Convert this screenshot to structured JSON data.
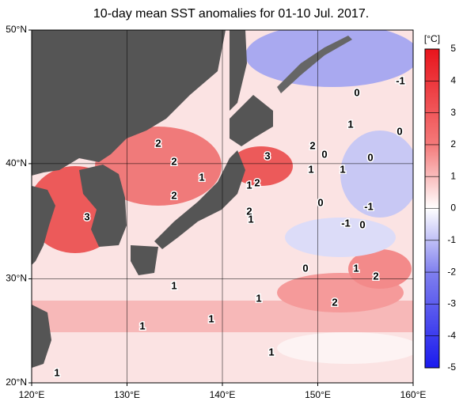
{
  "map": {
    "title": "10-day mean SST anomalies for 01-10 Jul. 2017.",
    "lonlim": [
      120,
      160
    ],
    "latlim": [
      20,
      50
    ],
    "lonticks": [
      {
        "value": 120,
        "label": "120°E"
      },
      {
        "value": 130,
        "label": "130°E"
      },
      {
        "value": 140,
        "label": "140°E"
      },
      {
        "value": 150,
        "label": "150°E"
      },
      {
        "value": 160,
        "label": "160°E"
      }
    ],
    "latticks": [
      {
        "value": 50,
        "label": "50°N"
      },
      {
        "value": 40,
        "label": "40°N"
      },
      {
        "value": 30,
        "label": "30°N"
      },
      {
        "value": 20,
        "label": "20°N"
      }
    ],
    "grid": true,
    "colorbar": {
      "unit": "[°C]",
      "lim": [
        -5,
        5
      ],
      "ticks": [
        5,
        4,
        3,
        2,
        1,
        0,
        -1,
        -2,
        -3,
        -4,
        -5
      ]
    },
    "contour_labels": [
      2,
      2,
      2,
      2,
      2,
      2,
      2,
      2,
      3,
      3,
      1,
      1,
      1,
      1,
      1,
      1,
      1,
      1,
      1,
      1,
      1,
      1,
      1,
      0,
      0,
      0,
      0,
      0,
      0,
      0,
      -1,
      -1,
      -1
    ]
  }
}
